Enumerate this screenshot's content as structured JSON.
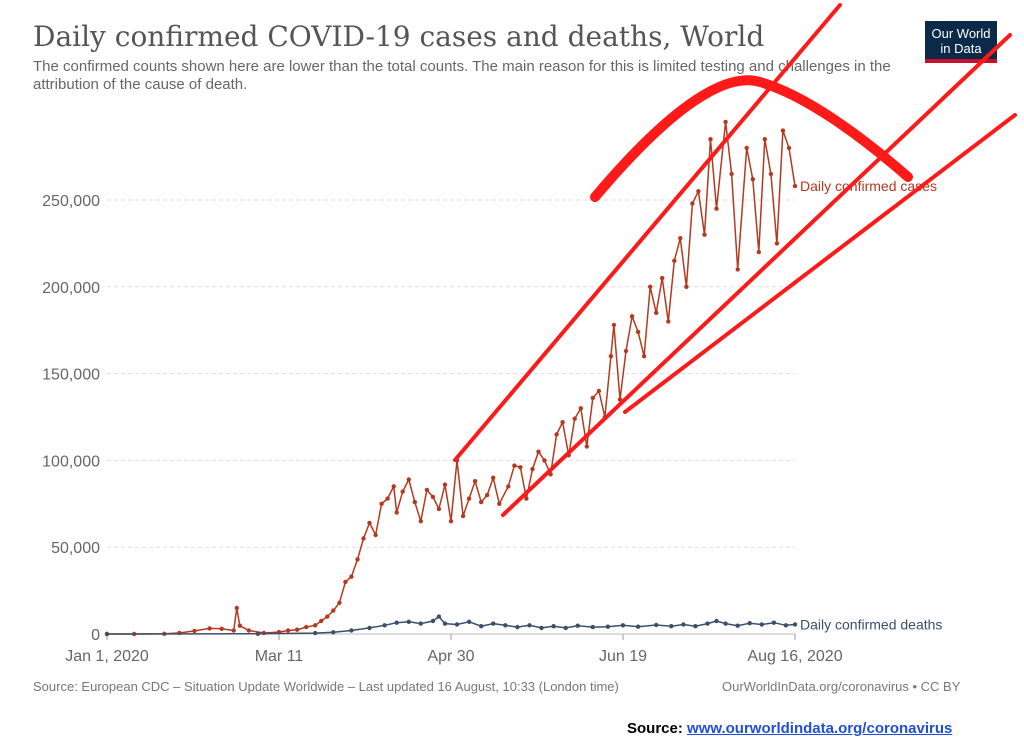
{
  "header": {
    "title": "Daily confirmed COVID-19 cases and deaths, World",
    "subtitle": "The confirmed counts shown here are lower than the total counts. The main reason for this is limited testing and challenges in the attribution of the cause of death."
  },
  "logo": {
    "line1": "Our World",
    "line2": "in Data",
    "bg": "#0b2a4a",
    "accent": "#c8102e"
  },
  "footer": {
    "source_text": "Source: European CDC – Situation Update Worldwide – Last updated 16 August, 10:33 (London time)",
    "license_text": "OurWorldInData.org/coronavirus • CC BY"
  },
  "source_line": {
    "label": "Source:",
    "link_text": "www.ourworldindata.org/coronavirus"
  },
  "colors": {
    "cases": "#b5391e",
    "deaths": "#3c4e6b",
    "annotation": "#ff1a1a",
    "grid": "#dddddd",
    "axis_text": "#666666"
  },
  "chart_data": {
    "type": "line",
    "title": "Daily confirmed COVID-19 cases and deaths, World",
    "xlabel": "",
    "ylabel": "",
    "x_start_date": "2020-01-01",
    "x_end_date": "2020-08-16",
    "x_ticks": [
      "Jan 1, 2020",
      "Mar 11",
      "Apr 30",
      "Jun 19",
      "Aug 16, 2020"
    ],
    "y_ticks": [
      "0",
      "50,000",
      "100,000",
      "150,000",
      "200,000",
      "250,000"
    ],
    "ylim": [
      0,
      270000
    ],
    "grid": true,
    "series": [
      {
        "name": "Daily confirmed cases",
        "color": "#b5391e",
        "points": [
          [
            "2020-01-01",
            0
          ],
          [
            "2020-01-10",
            0
          ],
          [
            "2020-01-20",
            100
          ],
          [
            "2020-01-25",
            600
          ],
          [
            "2020-01-30",
            1800
          ],
          [
            "2020-02-04",
            3200
          ],
          [
            "2020-02-08",
            3000
          ],
          [
            "2020-02-12",
            2000
          ],
          [
            "2020-02-13",
            15000
          ],
          [
            "2020-02-14",
            4800
          ],
          [
            "2020-02-17",
            2000
          ],
          [
            "2020-02-22",
            600
          ],
          [
            "2020-02-27",
            1100
          ],
          [
            "2020-03-01",
            2000
          ],
          [
            "2020-03-04",
            2500
          ],
          [
            "2020-03-07",
            4000
          ],
          [
            "2020-03-10",
            5000
          ],
          [
            "2020-03-12",
            7500
          ],
          [
            "2020-03-14",
            10000
          ],
          [
            "2020-03-16",
            13500
          ],
          [
            "2020-03-18",
            18000
          ],
          [
            "2020-03-20",
            30000
          ],
          [
            "2020-03-22",
            33000
          ],
          [
            "2020-03-24",
            43000
          ],
          [
            "2020-03-26",
            55000
          ],
          [
            "2020-03-28",
            64000
          ],
          [
            "2020-03-30",
            57000
          ],
          [
            "2020-04-01",
            75000
          ],
          [
            "2020-04-03",
            78000
          ],
          [
            "2020-04-05",
            85000
          ],
          [
            "2020-04-06",
            70000
          ],
          [
            "2020-04-08",
            82000
          ],
          [
            "2020-04-10",
            89000
          ],
          [
            "2020-04-12",
            76000
          ],
          [
            "2020-04-14",
            65000
          ],
          [
            "2020-04-16",
            83000
          ],
          [
            "2020-04-18",
            79000
          ],
          [
            "2020-04-20",
            72000
          ],
          [
            "2020-04-22",
            86000
          ],
          [
            "2020-04-24",
            65000
          ],
          [
            "2020-04-26",
            100000
          ],
          [
            "2020-04-28",
            68000
          ],
          [
            "2020-04-30",
            78000
          ],
          [
            "2020-05-02",
            88000
          ],
          [
            "2020-05-04",
            76000
          ],
          [
            "2020-05-06",
            80000
          ],
          [
            "2020-05-08",
            90000
          ],
          [
            "2020-05-10",
            75000
          ],
          [
            "2020-05-13",
            85000
          ],
          [
            "2020-05-15",
            97000
          ],
          [
            "2020-05-17",
            96000
          ],
          [
            "2020-05-19",
            78000
          ],
          [
            "2020-05-21",
            95000
          ],
          [
            "2020-05-23",
            105000
          ],
          [
            "2020-05-25",
            100000
          ],
          [
            "2020-05-27",
            92000
          ],
          [
            "2020-05-29",
            115000
          ],
          [
            "2020-05-31",
            122000
          ],
          [
            "2020-06-02",
            103000
          ],
          [
            "2020-06-04",
            124000
          ],
          [
            "2020-06-06",
            130000
          ],
          [
            "2020-06-08",
            108000
          ],
          [
            "2020-06-10",
            136000
          ],
          [
            "2020-06-12",
            140000
          ],
          [
            "2020-06-14",
            125000
          ],
          [
            "2020-06-16",
            160000
          ],
          [
            "2020-06-17",
            178000
          ],
          [
            "2020-06-19",
            135000
          ],
          [
            "2020-06-21",
            163000
          ],
          [
            "2020-06-23",
            183000
          ],
          [
            "2020-06-25",
            174000
          ],
          [
            "2020-06-27",
            160000
          ],
          [
            "2020-06-29",
            200000
          ],
          [
            "2020-07-01",
            185000
          ],
          [
            "2020-07-03",
            205000
          ],
          [
            "2020-07-05",
            180000
          ],
          [
            "2020-07-07",
            215000
          ],
          [
            "2020-07-09",
            228000
          ],
          [
            "2020-07-11",
            200000
          ],
          [
            "2020-07-13",
            248000
          ],
          [
            "2020-07-15",
            255000
          ],
          [
            "2020-07-17",
            230000
          ],
          [
            "2020-07-19",
            285000
          ],
          [
            "2020-07-21",
            245000
          ],
          [
            "2020-07-24",
            295000
          ],
          [
            "2020-07-26",
            265000
          ],
          [
            "2020-07-28",
            210000
          ],
          [
            "2020-07-31",
            280000
          ],
          [
            "2020-08-02",
            262000
          ],
          [
            "2020-08-04",
            220000
          ],
          [
            "2020-08-06",
            285000
          ],
          [
            "2020-08-08",
            265000
          ],
          [
            "2020-08-10",
            225000
          ],
          [
            "2020-08-12",
            290000
          ],
          [
            "2020-08-14",
            280000
          ],
          [
            "2020-08-16",
            258000
          ]
        ]
      },
      {
        "name": "Daily confirmed deaths",
        "color": "#3c4e6b",
        "points": [
          [
            "2020-01-01",
            0
          ],
          [
            "2020-02-20",
            100
          ],
          [
            "2020-03-10",
            500
          ],
          [
            "2020-03-16",
            1000
          ],
          [
            "2020-03-22",
            2000
          ],
          [
            "2020-03-28",
            3500
          ],
          [
            "2020-04-02",
            5000
          ],
          [
            "2020-04-06",
            6500
          ],
          [
            "2020-04-10",
            7000
          ],
          [
            "2020-04-14",
            6000
          ],
          [
            "2020-04-18",
            7500
          ],
          [
            "2020-04-20",
            10000
          ],
          [
            "2020-04-22",
            6000
          ],
          [
            "2020-04-26",
            5500
          ],
          [
            "2020-04-30",
            7000
          ],
          [
            "2020-05-04",
            4500
          ],
          [
            "2020-05-08",
            6000
          ],
          [
            "2020-05-12",
            5000
          ],
          [
            "2020-05-16",
            4000
          ],
          [
            "2020-05-20",
            5000
          ],
          [
            "2020-05-24",
            3500
          ],
          [
            "2020-05-28",
            4500
          ],
          [
            "2020-06-01",
            3500
          ],
          [
            "2020-06-05",
            4800
          ],
          [
            "2020-06-10",
            4000
          ],
          [
            "2020-06-15",
            4200
          ],
          [
            "2020-06-20",
            5000
          ],
          [
            "2020-06-25",
            4200
          ],
          [
            "2020-07-01",
            5200
          ],
          [
            "2020-07-06",
            4500
          ],
          [
            "2020-07-10",
            5500
          ],
          [
            "2020-07-14",
            4500
          ],
          [
            "2020-07-18",
            6000
          ],
          [
            "2020-07-21",
            7500
          ],
          [
            "2020-07-24",
            6000
          ],
          [
            "2020-07-28",
            4800
          ],
          [
            "2020-08-01",
            6200
          ],
          [
            "2020-08-05",
            5500
          ],
          [
            "2020-08-09",
            6500
          ],
          [
            "2020-08-13",
            5000
          ],
          [
            "2020-08-16",
            5500
          ]
        ]
      }
    ]
  }
}
